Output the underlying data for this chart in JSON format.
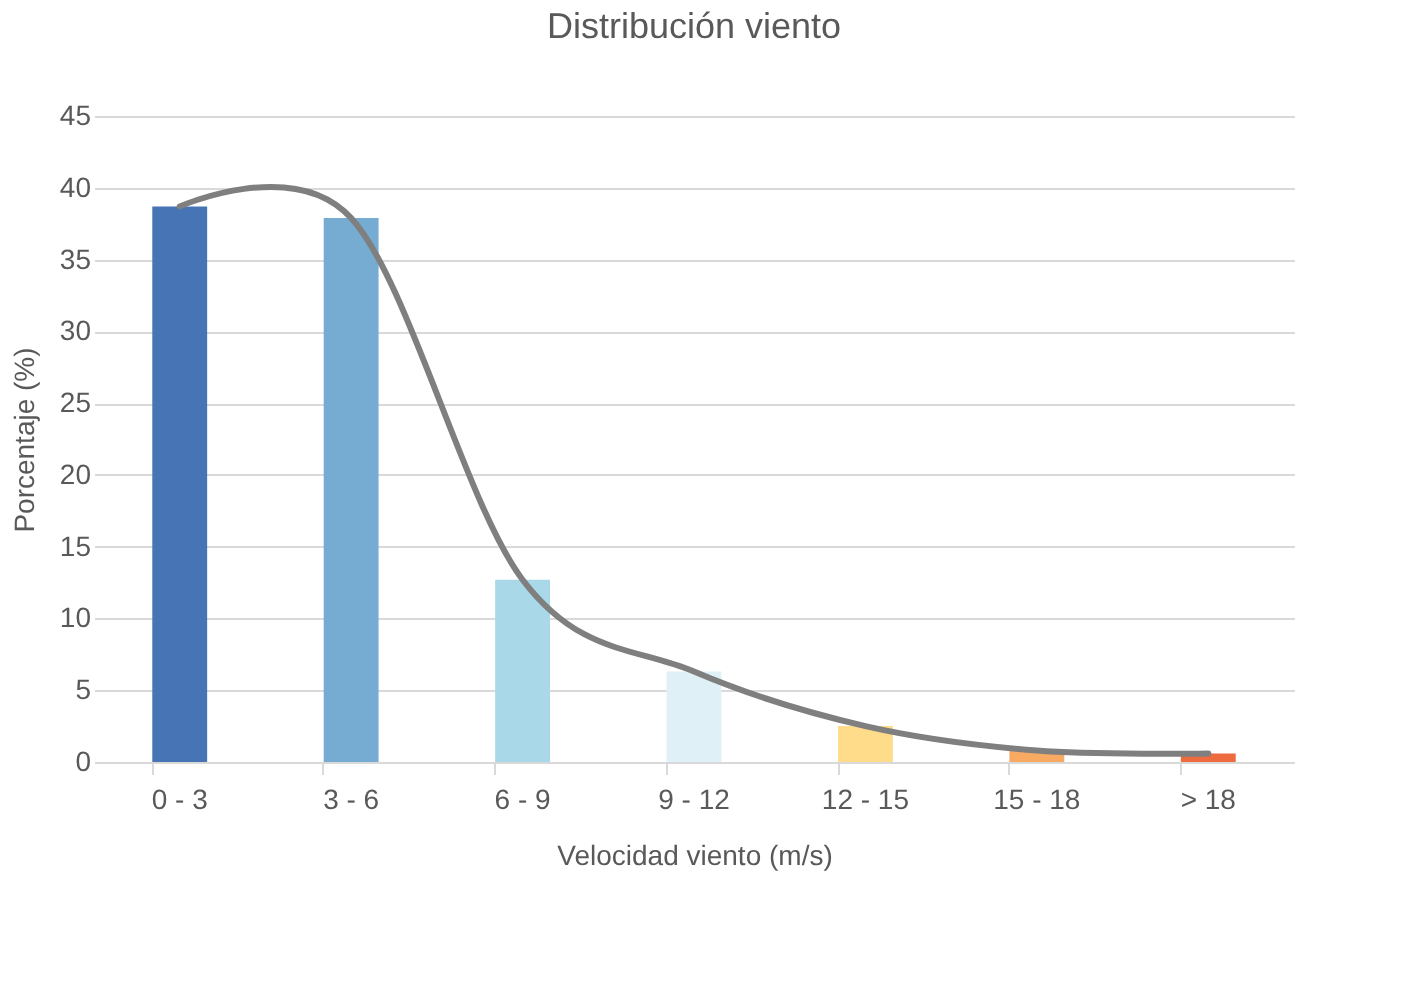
{
  "chart_data": {
    "type": "bar",
    "title": "Distribución viento",
    "xlabel": "Velocidad viento (m/s)",
    "ylabel": "Porcentaje (%)",
    "categories": [
      "0 - 3",
      "3 - 6",
      "6 - 9",
      "9 - 12",
      "12 - 15",
      "15 - 18",
      "> 18"
    ],
    "series": [
      {
        "colors": [
          "#4674b5",
          "#76acd2",
          "#a9d8e8",
          "#dff0f7",
          "#ffdc8a",
          "#f8a962",
          "#ee6a3f"
        ],
        "values": [
          38.7,
          37.9,
          12.7,
          6.3,
          2.5,
          0.8,
          0.6
        ]
      },
      {
        "type": "line",
        "color": "#7f7f7f",
        "values": [
          38.7,
          37.9,
          12.7,
          6.3,
          2.5,
          0.8,
          0.6
        ]
      }
    ],
    "ylim": [
      0,
      45
    ],
    "yticks": [
      0,
      5,
      10,
      15,
      20,
      25,
      30,
      35,
      40,
      45
    ],
    "grid": "y"
  }
}
